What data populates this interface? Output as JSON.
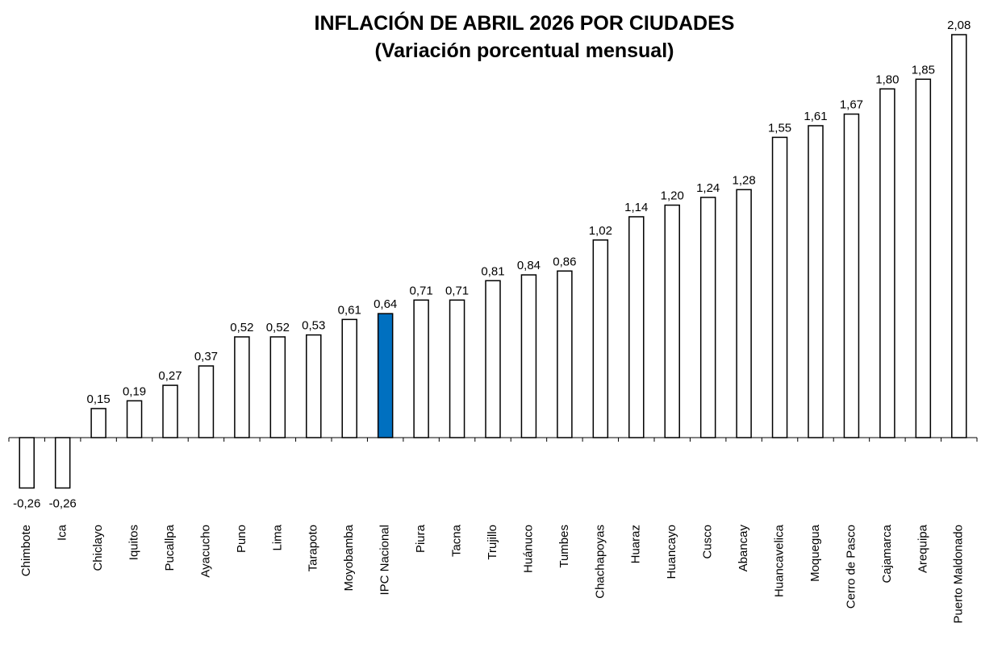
{
  "chart_data": {
    "type": "bar",
    "title": "INFLACIÓN DE ABRIL 2026 POR CIUDADES",
    "subtitle": "(Variación porcentual mensual)",
    "categories": [
      "Chimbote",
      "Ica",
      "Chiclayo",
      "Iquitos",
      "Pucallpa",
      "Ayacucho",
      "Puno",
      "Lima",
      "Tarapoto",
      "Moyobamba",
      "IPC Nacional",
      "Piura",
      "Tacna",
      "Trujillo",
      "Huánuco",
      "Tumbes",
      "Chachapoyas",
      "Huaraz",
      "Huancayo",
      "Cusco",
      "Abancay",
      "Huancavelica",
      "Moquegua",
      "Cerro de Pasco",
      "Cajamarca",
      "Arequipa",
      "Puerto Maldonado"
    ],
    "values": [
      -0.26,
      -0.26,
      0.15,
      0.19,
      0.27,
      0.37,
      0.52,
      0.52,
      0.53,
      0.61,
      0.64,
      0.71,
      0.71,
      0.81,
      0.84,
      0.86,
      1.02,
      1.14,
      1.2,
      1.24,
      1.28,
      1.55,
      1.61,
      1.67,
      1.8,
      1.85,
      2.08
    ],
    "value_labels": [
      "-0,26",
      "-0,26",
      "0,15",
      "0,19",
      "0,27",
      "0,37",
      "0,52",
      "0,52",
      "0,53",
      "0,61",
      "0,64",
      "0,71",
      "0,71",
      "0,81",
      "0,84",
      "0,86",
      "1,02",
      "1,14",
      "1,20",
      "1,24",
      "1,28",
      "1,55",
      "1,61",
      "1,67",
      "1,80",
      "1,85",
      "2,08"
    ],
    "colors": [
      "#ffffff",
      "#ffffff",
      "#ffffff",
      "#ffffff",
      "#ffffff",
      "#ffffff",
      "#ffffff",
      "#ffffff",
      "#ffffff",
      "#ffffff",
      "#0070c0",
      "#ffffff",
      "#ffffff",
      "#ffffff",
      "#ffffff",
      "#ffffff",
      "#ffffff",
      "#ffffff",
      "#ffffff",
      "#ffffff",
      "#ffffff",
      "#ffffff",
      "#ffffff",
      "#ffffff",
      "#ffffff",
      "#ffffff",
      "#ffffff"
    ]
  }
}
